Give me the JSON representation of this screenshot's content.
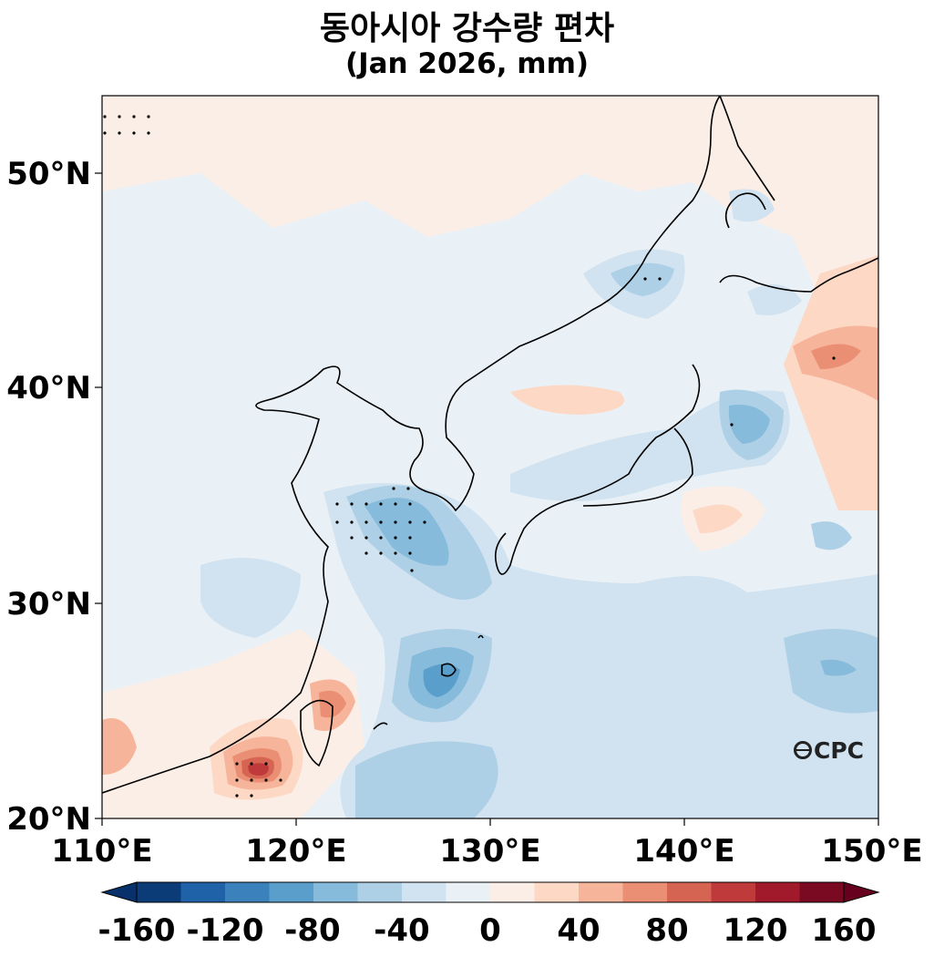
{
  "title": "동아시아 강수량 편차",
  "subtitle": "(Jan 2026, mm)",
  "lat_labels": [
    "50°N",
    "40°N",
    "30°N",
    "20°N"
  ],
  "lon_labels": [
    "110°E",
    "120°E",
    "130°E",
    "140°E",
    "150°E"
  ],
  "colorbar": {
    "labels": [
      "-160",
      "-120",
      "-80",
      "-40",
      "0",
      "40",
      "80",
      "120",
      "160"
    ],
    "colors": [
      "#0b3c78",
      "#1f62a8",
      "#3b82bd",
      "#5a9fcc",
      "#86bbdb",
      "#aed0e6",
      "#d1e3f0",
      "#eaf1f6",
      "#fbeee6",
      "#fcd8c5",
      "#f6b59b",
      "#ea8f73",
      "#d66452",
      "#bf3a3a",
      "#a11a2c",
      "#7a0a22"
    ]
  },
  "logo": "CPC",
  "colors": {
    "neutral_blue": "#eaf1f6",
    "neutral_red": "#fbeee6",
    "coast": "#000000"
  }
}
